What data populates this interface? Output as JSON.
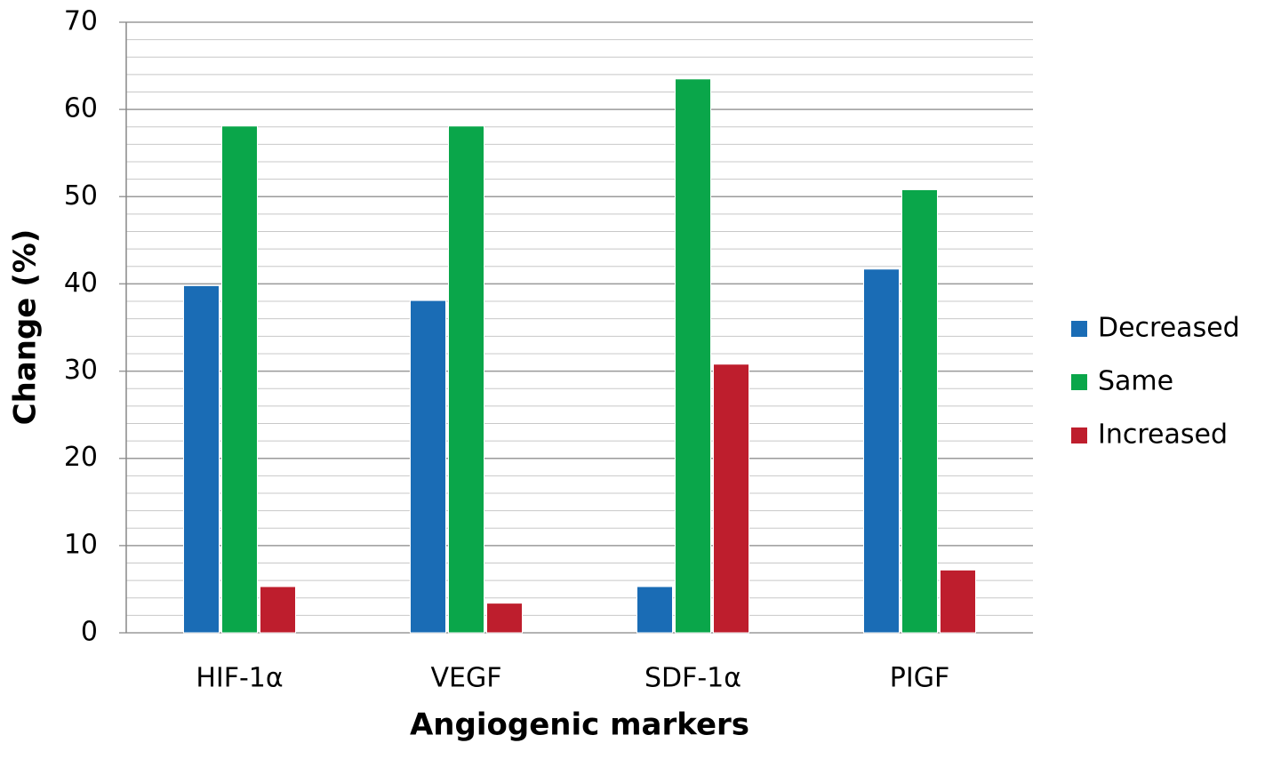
{
  "chart_data": {
    "type": "bar",
    "categories": [
      "HIF-1α",
      "VEGF",
      "SDF-1α",
      "PIGF"
    ],
    "series": [
      {
        "name": "Decreased",
        "color": "#1a6cb5",
        "values": [
          39.8,
          38.1,
          5.3,
          41.7
        ]
      },
      {
        "name": "Same",
        "color": "#0aa64a",
        "values": [
          58.1,
          58.1,
          63.5,
          50.8
        ]
      },
      {
        "name": "Increased",
        "color": "#be1e2d",
        "values": [
          5.3,
          3.4,
          30.8,
          7.2
        ]
      }
    ],
    "x_label": "Angiogenic markers",
    "y_label": "Change (%)",
    "ylim": [
      0,
      70
    ],
    "yticks": [
      0,
      10,
      20,
      30,
      40,
      50,
      60,
      70
    ],
    "grid": true,
    "legend": "right"
  }
}
